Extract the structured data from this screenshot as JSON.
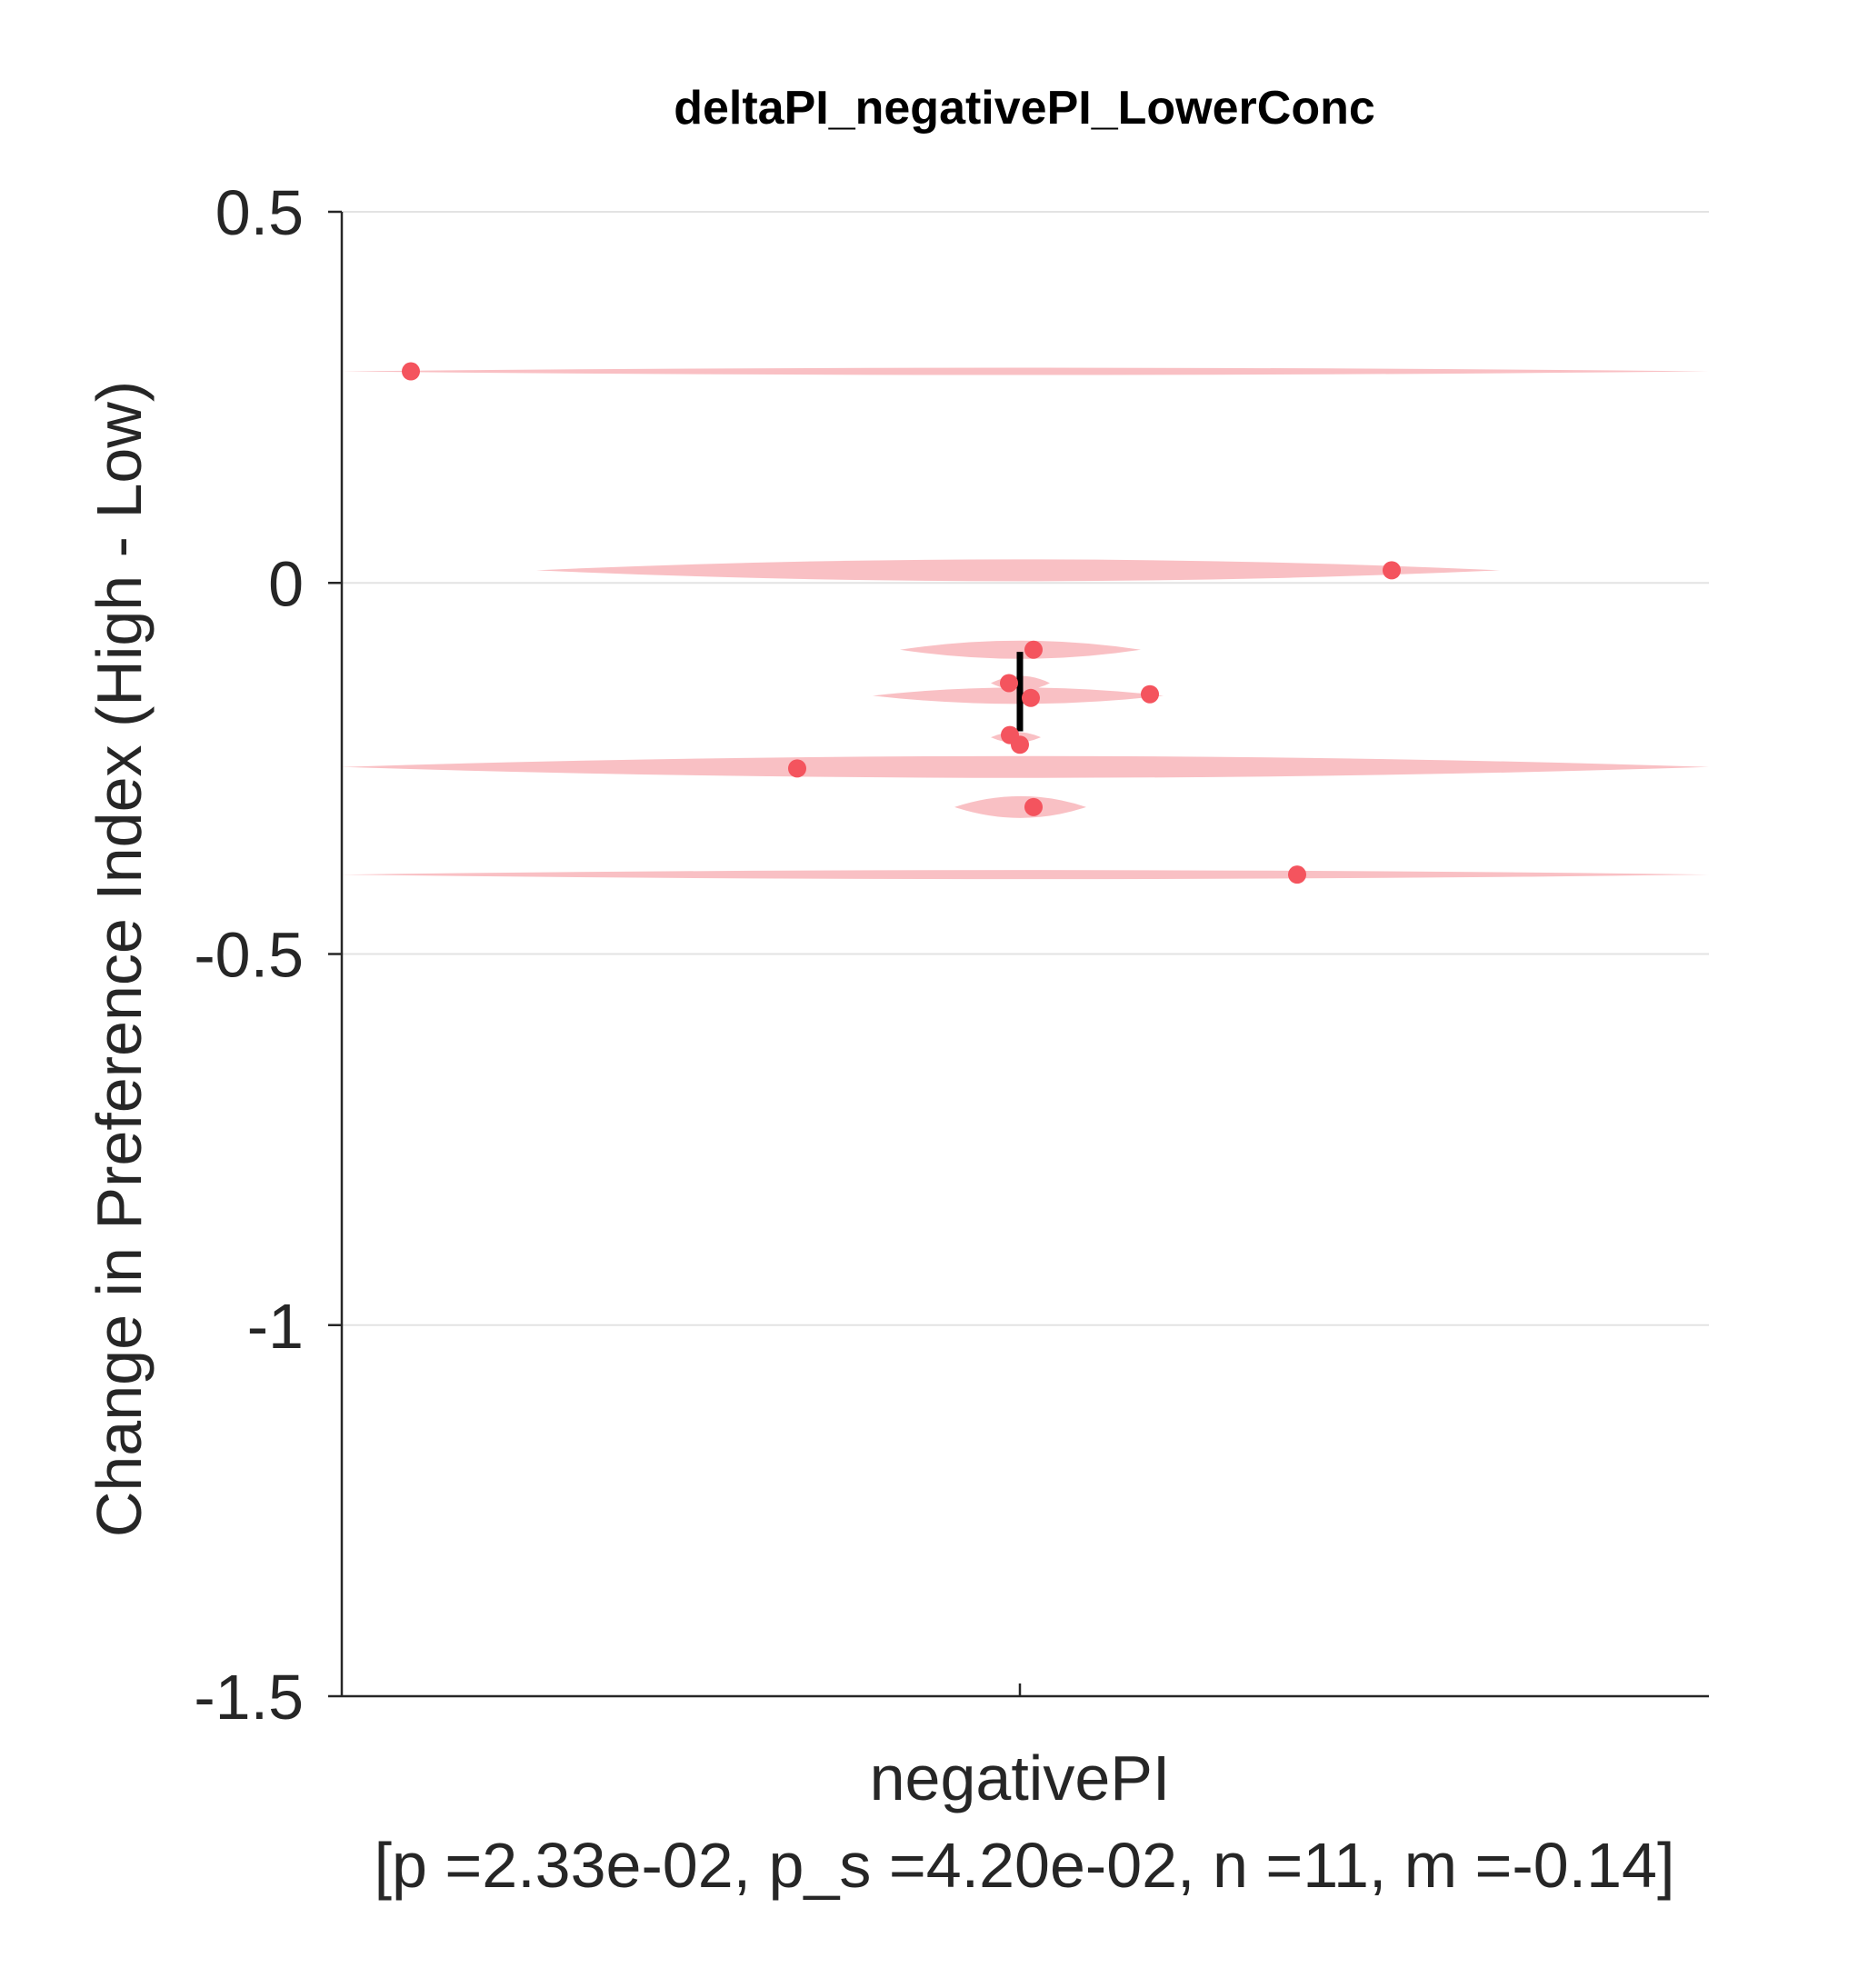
{
  "chart_data": {
    "type": "scatter",
    "title": "deltaPI_negativePI_LowerConc",
    "ylabel": "Change in Preference Index (High - Low)",
    "categories": [
      "negativePI"
    ],
    "xlabel_stats": "[p =2.33e-02, p_s =4.20e-02, n =11, m =-0.14]",
    "ylim": [
      -1.5,
      0.5
    ],
    "yticks": [
      0.5,
      0,
      -0.5,
      -1,
      -1.5
    ],
    "ytick_labels": [
      "0.5",
      "0",
      "-0.5",
      "-1",
      "-1.5"
    ],
    "grid": true,
    "series": [
      {
        "category": "negativePI",
        "values": [
          0.285,
          0.017,
          -0.09,
          -0.135,
          -0.15,
          -0.155,
          -0.205,
          -0.218,
          -0.25,
          -0.302,
          -0.393
        ],
        "color": "#f4545e"
      }
    ],
    "error_bar": {
      "from": -0.2,
      "to": -0.093,
      "color": "#000000"
    },
    "violin_color": "#f9c0c4",
    "grid_color": "#e3e3e3",
    "axis_color": "#262626"
  }
}
